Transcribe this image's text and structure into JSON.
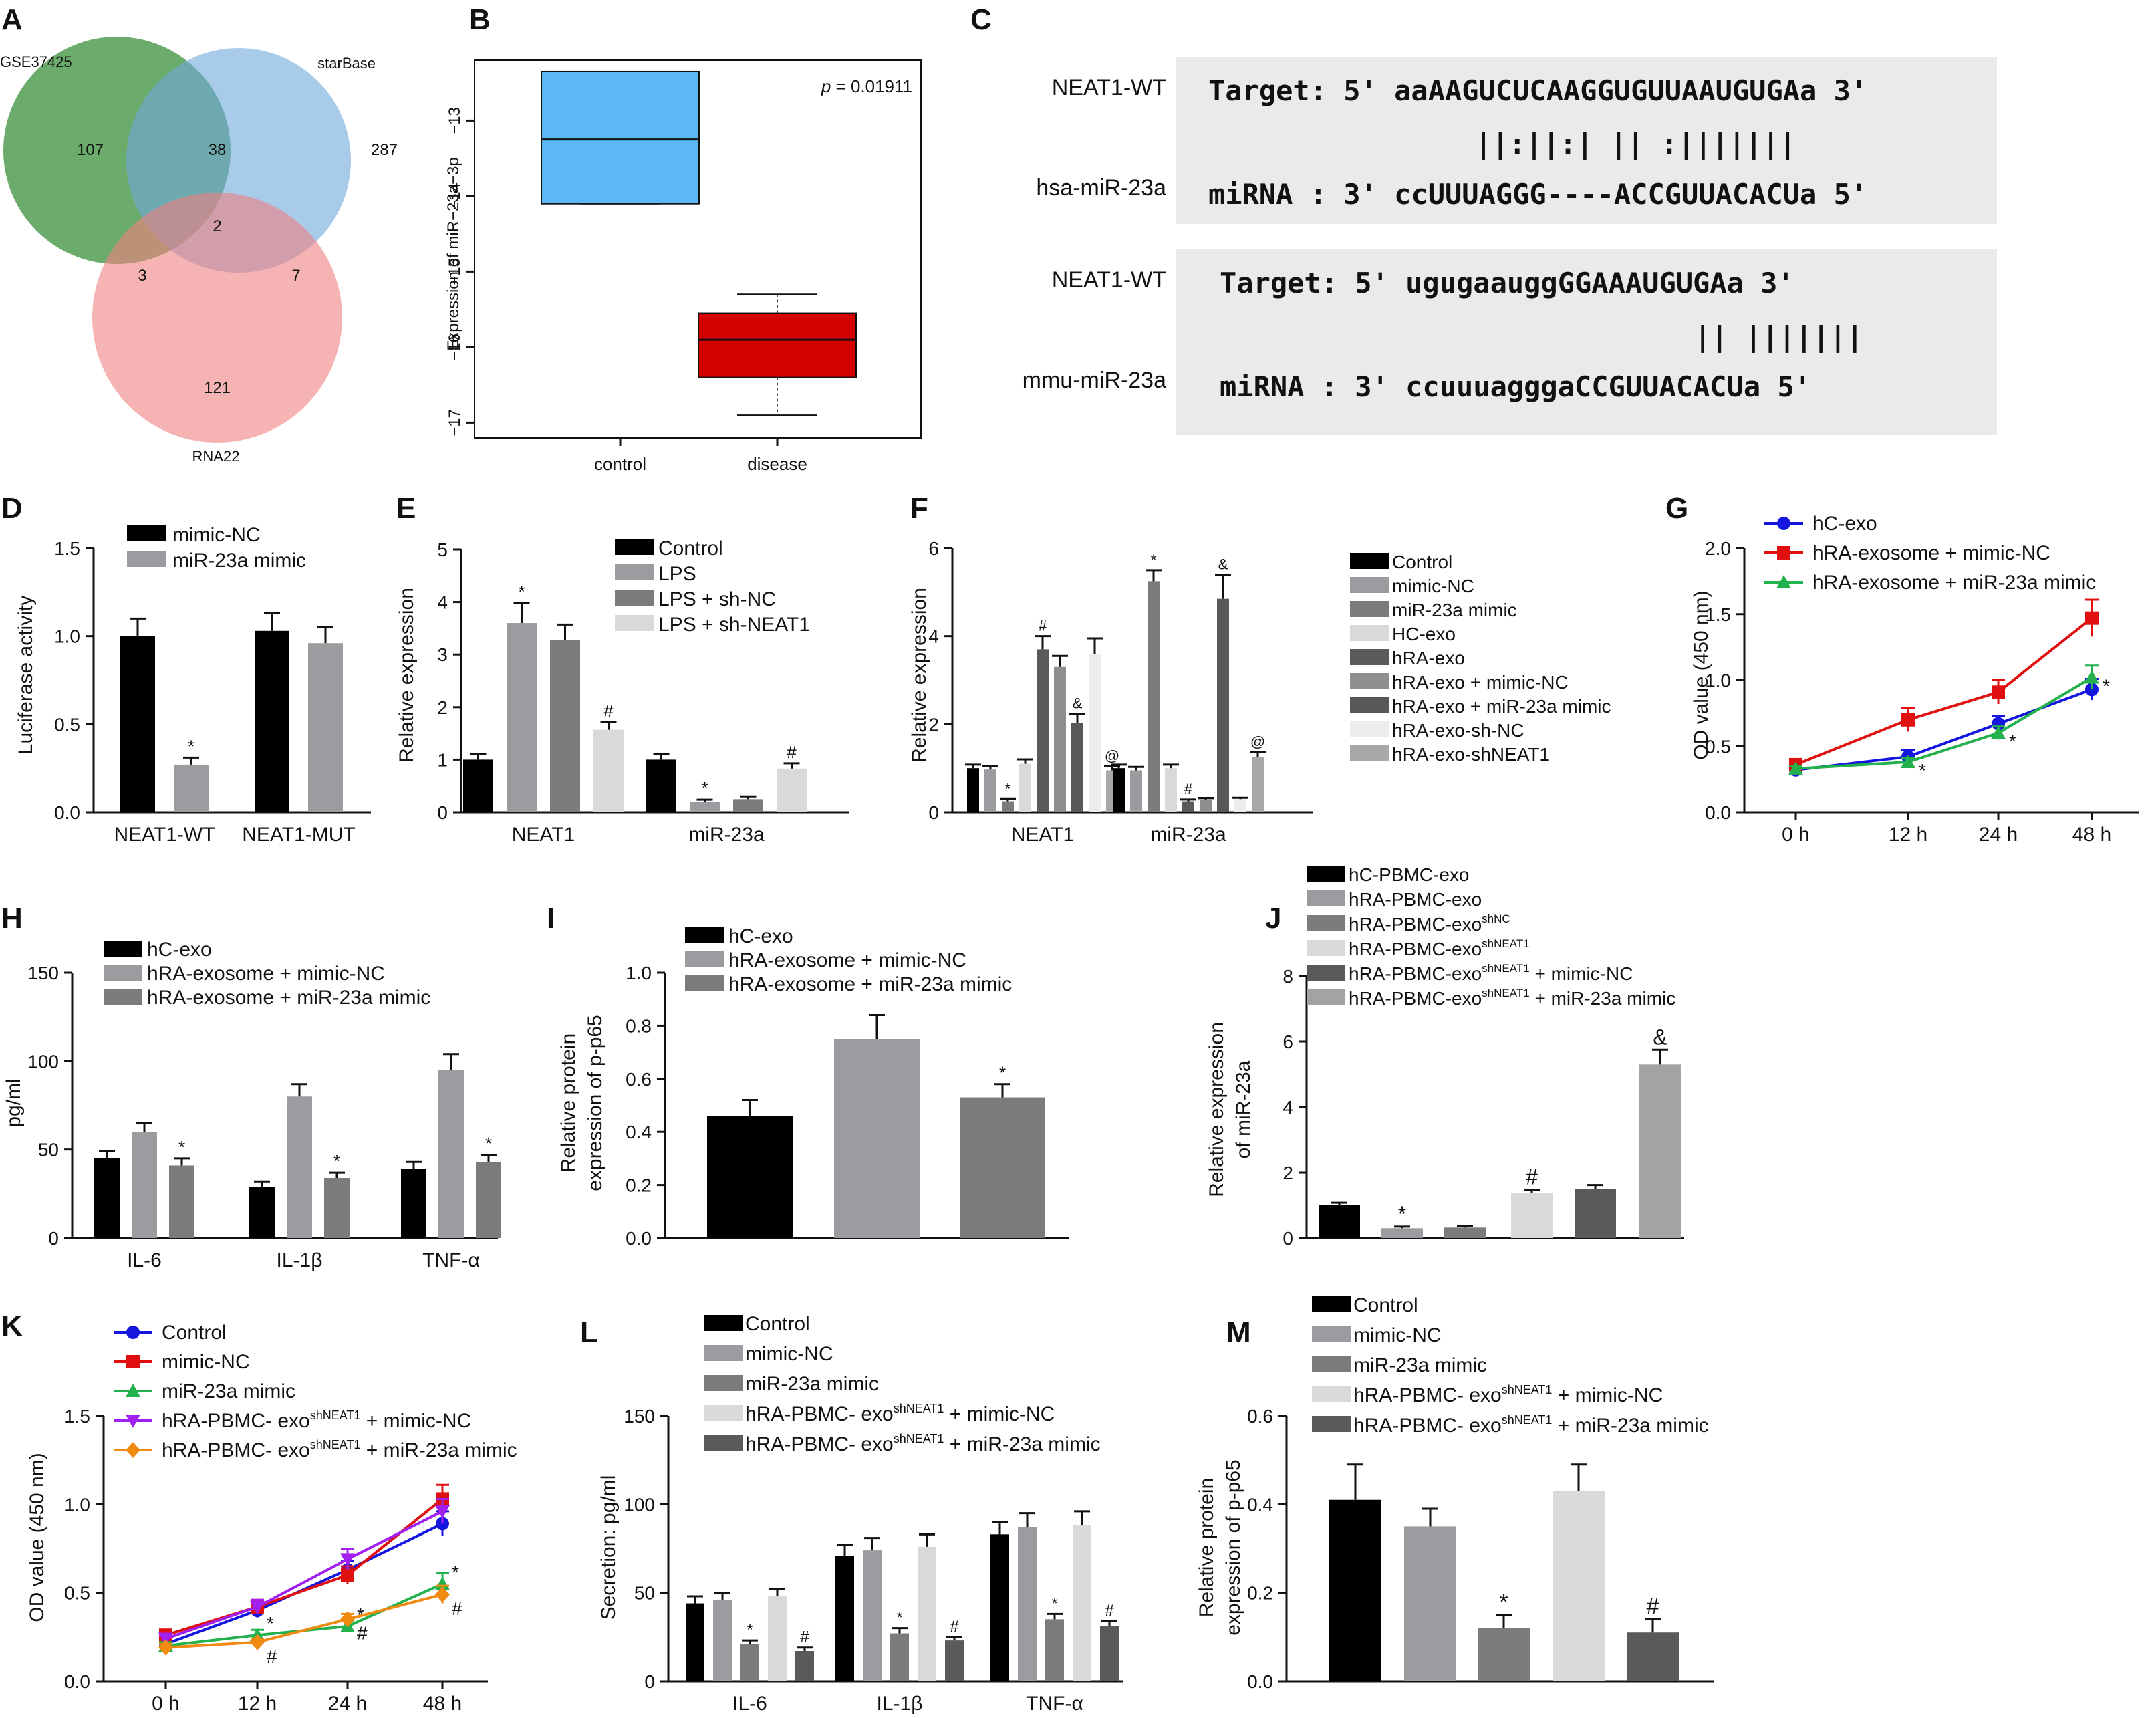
{
  "colors": {
    "black": "#000000",
    "grey1": "#9c9ca0",
    "grey2": "#7b7b7d",
    "grey3": "#d9d9d9",
    "grey4": "#5a5a5c",
    "blue": "#1515e0",
    "red": "#e01010",
    "green": "#22b14c",
    "purple": "#a020f0",
    "orange": "#f08a10",
    "venn_green": "#3a8f3a",
    "venn_blue": "#6fa8dc",
    "venn_red": "#f08080",
    "box_blue": "#5bb8f5",
    "box_red": "#d40000"
  },
  "panels": {
    "A": {
      "label": "A",
      "sets": [
        "GSE37425",
        "starBase",
        "RNA22"
      ],
      "regions": {
        "a_only": "107",
        "b_only": "287",
        "c_only": "121",
        "ab": "38",
        "ac": "3",
        "bc": "7",
        "abc": "2"
      }
    },
    "B": {
      "label": "B",
      "ylabel": "Expression of miR−23a−3p",
      "yticks": [
        "−13",
        "−14",
        "−15",
        "−16",
        "−17"
      ],
      "pvalue_label": "p",
      "pvalue_text": " = 0.01911",
      "categories": [
        "control",
        "disease"
      ]
    },
    "C": {
      "label": "C",
      "blocks": [
        {
          "target_name": "NEAT1-WT",
          "mirna_name": "hsa-miR-23a",
          "target_seq": "Target: 5' aaAAGUCUCAAGGUGUUAAUGUGAa 3'",
          "pairing": "||:||:|    || :|||||||",
          "mirna_seq": "miRNA : 3' ccUUUAGGG----ACCGUUACACUa 5'"
        },
        {
          "target_name": "NEAT1-WT",
          "mirna_name": "mmu-miR-23a",
          "target_seq": "Target: 5' ugugaauggGGAAAUGUGAa 3'",
          "pairing": "|| |||||||",
          "mirna_seq": "miRNA : 3' ccuuuagggaCCGUUACACUa 5'"
        }
      ]
    },
    "D": {
      "label": "D",
      "ylabel": "Luciferase activity",
      "yticks": [
        "0.0",
        "0.5",
        "1.0",
        "1.5"
      ],
      "legend": [
        "mimic-NC",
        "miR-23a mimic"
      ],
      "groups": [
        "NEAT1-WT",
        "NEAT1-MUT"
      ]
    },
    "E": {
      "label": "E",
      "ylabel": "Relative expression",
      "yticks": [
        "0",
        "1",
        "2",
        "3",
        "4",
        "5"
      ],
      "legend": [
        "Control",
        "LPS",
        "LPS + sh-NC",
        "LPS + sh-NEAT1"
      ],
      "groups": [
        "NEAT1",
        "miR-23a"
      ]
    },
    "F": {
      "label": "F",
      "ylabel": "Relative expression",
      "yticks": [
        "0",
        "2",
        "4",
        "6"
      ],
      "legend": [
        "Control",
        "mimic-NC",
        "miR-23a mimic",
        "HC-exo",
        "hRA-exo",
        "hRA-exo + mimic-NC",
        "hRA-exo + miR-23a mimic",
        "hRA-exo-sh-NC",
        "hRA-exo-shNEAT1"
      ],
      "groups": [
        "NEAT1",
        "miR-23a"
      ]
    },
    "G": {
      "label": "G",
      "ylabel": "OD value (450 nm)",
      "yticks": [
        "0.0",
        "0.5",
        "1.0",
        "1.5",
        "2.0"
      ],
      "xticks": [
        "0 h",
        "12 h",
        "24 h",
        "48 h"
      ],
      "legend": [
        "hC-exo",
        "hRA-exosome + mimic-NC",
        "hRA-exosome + miR-23a mimic"
      ]
    },
    "H": {
      "label": "H",
      "ylabel": "pg/ml",
      "yticks": [
        "0",
        "50",
        "100",
        "150"
      ],
      "legend": [
        "hC-exo",
        "hRA-exosome + mimic-NC",
        "hRA-exosome + miR-23a mimic"
      ],
      "groups": [
        "IL-6",
        "IL-1β",
        "TNF-α"
      ]
    },
    "I": {
      "label": "I",
      "ylabel1": "Relative protein",
      "ylabel2": "expression of p-p65",
      "yticks": [
        "0.0",
        "0.2",
        "0.4",
        "0.6",
        "0.8",
        "1.0"
      ],
      "legend": [
        "hC-exo",
        "hRA-exosome + mimic-NC",
        "hRA-exosome + miR-23a mimic"
      ]
    },
    "J": {
      "label": "J",
      "ylabel1": "Relative expression",
      "ylabel2": "of miR-23a",
      "yticks": [
        "0",
        "2",
        "4",
        "6",
        "8"
      ],
      "legend": [
        {
          "main": "hC-PBMC-exo",
          "sup": "",
          "tail": ""
        },
        {
          "main": "hRA-PBMC-exo",
          "sup": "",
          "tail": ""
        },
        {
          "main": "hRA-PBMC-exo",
          "sup": "shNC",
          "tail": ""
        },
        {
          "main": "hRA-PBMC-exo",
          "sup": "shNEAT1",
          "tail": ""
        },
        {
          "main": "hRA-PBMC-exo",
          "sup": "shNEAT1",
          "tail": " + mimic-NC"
        },
        {
          "main": "hRA-PBMC-exo",
          "sup": "shNEAT1",
          "tail": " + miR-23a mimic"
        }
      ]
    },
    "K": {
      "label": "K",
      "ylabel": "OD value (450 nm)",
      "yticks": [
        "0.0",
        "0.5",
        "1.0",
        "1.5"
      ],
      "xticks": [
        "0 h",
        "12 h",
        "24 h",
        "48 h"
      ],
      "legend": [
        {
          "main": "Control",
          "sup": "",
          "tail": ""
        },
        {
          "main": "mimic-NC",
          "sup": "",
          "tail": ""
        },
        {
          "main": "miR-23a mimic",
          "sup": "",
          "tail": ""
        },
        {
          "main": "hRA-PBMC- exo",
          "sup": "shNEAT1",
          "tail": " + mimic-NC"
        },
        {
          "main": "hRA-PBMC- exo",
          "sup": "shNEAT1",
          "tail": " + miR-23a mimic"
        }
      ]
    },
    "L": {
      "label": "L",
      "ylabel": "Secretion: pg/ml",
      "yticks": [
        "0",
        "50",
        "100",
        "150"
      ],
      "groups": [
        "IL-6",
        "IL-1β",
        "TNF-α"
      ],
      "legend": [
        {
          "main": "Control",
          "sup": "",
          "tail": ""
        },
        {
          "main": "mimic-NC",
          "sup": "",
          "tail": ""
        },
        {
          "main": "miR-23a mimic",
          "sup": "",
          "tail": ""
        },
        {
          "main": "hRA-PBMC- exo",
          "sup": "shNEAT1",
          "tail": " + mimic-NC"
        },
        {
          "main": "hRA-PBMC- exo",
          "sup": "shNEAT1",
          "tail": " + miR-23a mimic"
        }
      ]
    },
    "M": {
      "label": "M",
      "ylabel1": "Relative protein",
      "ylabel2": "expression of p-p65",
      "yticks": [
        "0.0",
        "0.2",
        "0.4",
        "0.6"
      ],
      "legend": [
        {
          "main": "Control",
          "sup": "",
          "tail": ""
        },
        {
          "main": "mimic-NC",
          "sup": "",
          "tail": ""
        },
        {
          "main": "miR-23a mimic",
          "sup": "",
          "tail": ""
        },
        {
          "main": "hRA-PBMC- exo",
          "sup": "shNEAT1",
          "tail": " + mimic-NC"
        },
        {
          "main": "hRA-PBMC- exo",
          "sup": "shNEAT1",
          "tail": " + miR-23a mimic"
        }
      ]
    }
  },
  "chart_data": [
    {
      "panel": "B",
      "type": "box",
      "categories": [
        "control",
        "disease"
      ],
      "boxes": [
        {
          "min": -14.1,
          "q1": -14.1,
          "median": -13.25,
          "q3": -12.35,
          "max": -12.35
        },
        {
          "min": -16.9,
          "q1": -16.4,
          "median": -15.9,
          "q3": -15.55,
          "max": -15.3
        }
      ],
      "ylim": [
        -17.2,
        -12.2
      ],
      "pvalue": 0.01911
    },
    {
      "panel": "D",
      "type": "bar",
      "categories": [
        "NEAT1-WT",
        "NEAT1-MUT"
      ],
      "ylim": [
        0,
        1.5
      ],
      "series": [
        {
          "name": "mimic-NC",
          "values": [
            1.0,
            1.03
          ],
          "errors": [
            0.1,
            0.1
          ],
          "marks": [
            "",
            ""
          ]
        },
        {
          "name": "miR-23a mimic",
          "values": [
            0.27,
            0.96
          ],
          "errors": [
            0.04,
            0.09
          ],
          "marks": [
            "*",
            ""
          ]
        }
      ]
    },
    {
      "panel": "E",
      "type": "bar",
      "categories": [
        "NEAT1",
        "miR-23a"
      ],
      "ylim": [
        0,
        5
      ],
      "series": [
        {
          "name": "Control",
          "values": [
            1.0,
            1.0
          ],
          "errors": [
            0.1,
            0.1
          ],
          "marks": [
            "",
            ""
          ]
        },
        {
          "name": "LPS",
          "values": [
            3.6,
            0.2
          ],
          "errors": [
            0.38,
            0.04
          ],
          "marks": [
            "*",
            "*"
          ]
        },
        {
          "name": "LPS + sh-NC",
          "values": [
            3.27,
            0.25
          ],
          "errors": [
            0.3,
            0.04
          ],
          "marks": [
            "",
            ""
          ]
        },
        {
          "name": "LPS + sh-NEAT1",
          "values": [
            1.57,
            0.83
          ],
          "errors": [
            0.15,
            0.1
          ],
          "marks": [
            "#",
            "#"
          ]
        }
      ]
    },
    {
      "panel": "F",
      "type": "bar",
      "categories": [
        "NEAT1",
        "miR-23a"
      ],
      "ylim": [
        0,
        6
      ],
      "series": [
        {
          "name": "Control",
          "values": [
            1.0,
            1.0
          ],
          "errors": [
            0.08,
            0.08
          ],
          "marks": [
            "",
            ""
          ]
        },
        {
          "name": "mimic-NC",
          "values": [
            0.97,
            0.95
          ],
          "errors": [
            0.08,
            0.08
          ],
          "marks": [
            "",
            ""
          ]
        },
        {
          "name": "miR-23a mimic",
          "values": [
            0.25,
            5.25
          ],
          "errors": [
            0.05,
            0.25
          ],
          "marks": [
            "*",
            "*"
          ]
        },
        {
          "name": "HC-exo",
          "values": [
            1.1,
            1.0
          ],
          "errors": [
            0.1,
            0.08
          ],
          "marks": [
            "",
            ""
          ]
        },
        {
          "name": "hRA-exo",
          "values": [
            3.7,
            0.25
          ],
          "errors": [
            0.3,
            0.04
          ],
          "marks": [
            "#",
            "#"
          ]
        },
        {
          "name": "hRA-exo + mimic-NC",
          "values": [
            3.3,
            0.28
          ],
          "errors": [
            0.25,
            0.04
          ],
          "marks": [
            "",
            ""
          ]
        },
        {
          "name": "hRA-exo + miR-23a mimic",
          "values": [
            2.02,
            4.85
          ],
          "errors": [
            0.22,
            0.55
          ],
          "marks": [
            "&",
            "&"
          ]
        },
        {
          "name": "hRA-exo-sh-NC",
          "values": [
            3.6,
            0.3
          ],
          "errors": [
            0.35,
            0.03
          ],
          "marks": [
            "",
            ""
          ]
        },
        {
          "name": "hRA-exo-shNEAT1",
          "values": [
            0.95,
            1.25
          ],
          "errors": [
            0.1,
            0.12
          ],
          "marks": [
            "@",
            "@"
          ]
        }
      ]
    },
    {
      "panel": "G",
      "type": "line",
      "x": [
        "0 h",
        "12 h",
        "24 h",
        "48 h"
      ],
      "ylim": [
        0,
        2
      ],
      "series": [
        {
          "name": "hC-exo",
          "values": [
            0.32,
            0.42,
            0.67,
            0.93
          ],
          "errors": [
            0.02,
            0.05,
            0.06,
            0.08
          ],
          "marks": [
            "",
            "",
            "",
            ""
          ]
        },
        {
          "name": "hRA-exosome + mimic-NC",
          "values": [
            0.36,
            0.7,
            0.91,
            1.47
          ],
          "errors": [
            0.03,
            0.09,
            0.09,
            0.14
          ],
          "marks": [
            "",
            "",
            "",
            ""
          ]
        },
        {
          "name": "hRA-exosome + miR-23a mimic",
          "values": [
            0.33,
            0.38,
            0.6,
            1.02
          ],
          "errors": [
            0.02,
            0.03,
            0.05,
            0.09
          ],
          "marks": [
            "",
            "*",
            "*",
            "*"
          ]
        }
      ]
    },
    {
      "panel": "H",
      "type": "bar",
      "categories": [
        "IL-6",
        "IL-1β",
        "TNF-α"
      ],
      "ylim": [
        0,
        150
      ],
      "series": [
        {
          "name": "hC-exo",
          "values": [
            45,
            29,
            39
          ],
          "errors": [
            4,
            3,
            4
          ],
          "marks": [
            "",
            "",
            ""
          ]
        },
        {
          "name": "hRA-exosome + mimic-NC",
          "values": [
            60,
            80,
            95
          ],
          "errors": [
            5,
            7,
            9
          ],
          "marks": [
            "",
            "",
            ""
          ]
        },
        {
          "name": "hRA-exosome + miR-23a mimic",
          "values": [
            41,
            34,
            43
          ],
          "errors": [
            4,
            3,
            4
          ],
          "marks": [
            "*",
            "*",
            "*"
          ]
        }
      ]
    },
    {
      "panel": "I",
      "type": "bar",
      "categories": [
        "hC-exo",
        "hRA-exosome + mimic-NC",
        "hRA-exosome + miR-23a mimic"
      ],
      "ylim": [
        0,
        1
      ],
      "values": [
        0.46,
        0.75,
        0.53
      ],
      "errors": [
        0.06,
        0.09,
        0.05
      ],
      "marks": [
        "",
        "",
        "*"
      ]
    },
    {
      "panel": "J",
      "type": "bar",
      "ylim": [
        0,
        8
      ],
      "categories": [
        "hC-PBMC-exo",
        "hRA-PBMC-exo",
        "hRA-PBMC-exo shNC",
        "hRA-PBMC-exo shNEAT1",
        "hRA-PBMC-exo shNEAT1 + mimic-NC",
        "hRA-PBMC-exo shNEAT1 + miR-23a mimic"
      ],
      "values": [
        1.0,
        0.3,
        0.32,
        1.38,
        1.5,
        5.3
      ],
      "errors": [
        0.08,
        0.05,
        0.05,
        0.1,
        0.12,
        0.45
      ],
      "marks": [
        "",
        "*",
        "",
        "#",
        "",
        "&"
      ]
    },
    {
      "panel": "K",
      "type": "line",
      "x": [
        "0 h",
        "12 h",
        "24 h",
        "48 h"
      ],
      "ylim": [
        0,
        1.5
      ],
      "series": [
        {
          "name": "Control",
          "values": [
            0.21,
            0.4,
            0.63,
            0.89
          ],
          "errors": [
            0.02,
            0.04,
            0.05,
            0.07
          ],
          "marks": [
            "",
            "",
            "",
            ""
          ]
        },
        {
          "name": "mimic-NC",
          "values": [
            0.26,
            0.42,
            0.6,
            1.03
          ],
          "errors": [
            0.03,
            0.04,
            0.05,
            0.08
          ],
          "marks": [
            "",
            "",
            "",
            ""
          ]
        },
        {
          "name": "miR-23a mimic",
          "values": [
            0.2,
            0.26,
            0.31,
            0.55
          ],
          "errors": [
            0.02,
            0.03,
            0.03,
            0.06
          ],
          "marks": [
            "",
            "*",
            "*",
            "*"
          ]
        },
        {
          "name": "hRA-PBMC- exo shNEAT1 + mimic-NC",
          "values": [
            0.24,
            0.42,
            0.69,
            0.96
          ],
          "errors": [
            0.02,
            0.04,
            0.06,
            0.07
          ],
          "marks": [
            "",
            "",
            "",
            ""
          ]
        },
        {
          "name": "hRA-PBMC- exo shNEAT1 + miR-23a mimic",
          "values": [
            0.19,
            0.22,
            0.35,
            0.49
          ],
          "errors": [
            0.02,
            0.02,
            0.03,
            0.05
          ],
          "marks": [
            "",
            "#",
            "#",
            "#"
          ]
        }
      ]
    },
    {
      "panel": "L",
      "type": "bar",
      "categories": [
        "IL-6",
        "IL-1β",
        "TNF-α"
      ],
      "ylim": [
        0,
        150
      ],
      "series": [
        {
          "name": "Control",
          "values": [
            44,
            71,
            83
          ],
          "errors": [
            4,
            6,
            7
          ],
          "marks": [
            "",
            "",
            ""
          ]
        },
        {
          "name": "mimic-NC",
          "values": [
            46,
            74,
            87
          ],
          "errors": [
            4,
            7,
            8
          ],
          "marks": [
            "",
            "",
            ""
          ]
        },
        {
          "name": "miR-23a mimic",
          "values": [
            21,
            27,
            35
          ],
          "errors": [
            2,
            3,
            3
          ],
          "marks": [
            "*",
            "*",
            "*"
          ]
        },
        {
          "name": "hRA-PBMC- exo shNEAT1 + mimic-NC",
          "values": [
            48,
            76,
            88
          ],
          "errors": [
            4,
            7,
            8
          ],
          "marks": [
            "",
            "",
            ""
          ]
        },
        {
          "name": "hRA-PBMC- exo shNEAT1 + miR-23a mimic",
          "values": [
            17,
            23,
            31
          ],
          "errors": [
            2,
            2,
            3
          ],
          "marks": [
            "#",
            "#",
            "#"
          ]
        }
      ]
    },
    {
      "panel": "M",
      "type": "bar",
      "ylim": [
        0,
        0.6
      ],
      "categories": [
        "Control",
        "mimic-NC",
        "miR-23a mimic",
        "hRA-PBMC- exo shNEAT1 + mimic-NC",
        "hRA-PBMC- exo shNEAT1 + miR-23a mimic"
      ],
      "values": [
        0.41,
        0.35,
        0.12,
        0.43,
        0.11
      ],
      "errors": [
        0.08,
        0.04,
        0.03,
        0.06,
        0.03
      ],
      "marks": [
        "",
        "",
        "*",
        "",
        "#"
      ]
    }
  ]
}
